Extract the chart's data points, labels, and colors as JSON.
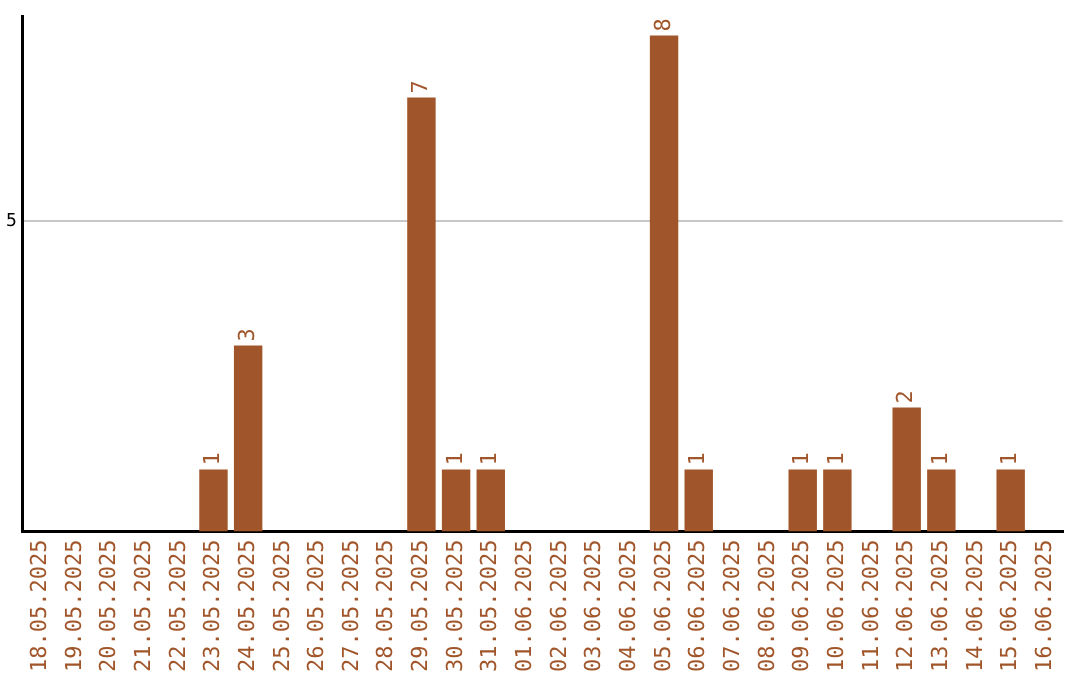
{
  "chart_data": {
    "type": "bar",
    "categories": [
      "18.05.2025",
      "19.05.2025",
      "20.05.2025",
      "21.05.2025",
      "22.05.2025",
      "23.05.2025",
      "24.05.2025",
      "25.05.2025",
      "26.05.2025",
      "27.05.2025",
      "28.05.2025",
      "29.05.2025",
      "30.05.2025",
      "31.05.2025",
      "01.06.2025",
      "02.06.2025",
      "03.06.2025",
      "04.06.2025",
      "05.06.2025",
      "06.06.2025",
      "07.06.2025",
      "08.06.2025",
      "09.06.2025",
      "10.06.2025",
      "11.06.2025",
      "12.06.2025",
      "13.06.2025",
      "14.06.2025",
      "15.06.2025",
      "16.06.2025"
    ],
    "values": [
      0,
      0,
      0,
      0,
      0,
      1,
      3,
      0,
      0,
      0,
      0,
      7,
      1,
      1,
      0,
      0,
      0,
      0,
      8,
      1,
      0,
      0,
      1,
      1,
      0,
      2,
      1,
      0,
      1,
      0
    ],
    "value_labels": [
      null,
      null,
      null,
      null,
      null,
      "1",
      "3",
      null,
      null,
      null,
      null,
      "7",
      "1",
      "1",
      null,
      null,
      null,
      null,
      "8",
      "1",
      null,
      null,
      "1",
      "1",
      null,
      "2",
      "1",
      null,
      "1",
      null
    ],
    "color": "#a0562a",
    "ylim": [
      0,
      8.3
    ],
    "yticks": [
      5
    ],
    "grid": "y",
    "legend": false
  }
}
